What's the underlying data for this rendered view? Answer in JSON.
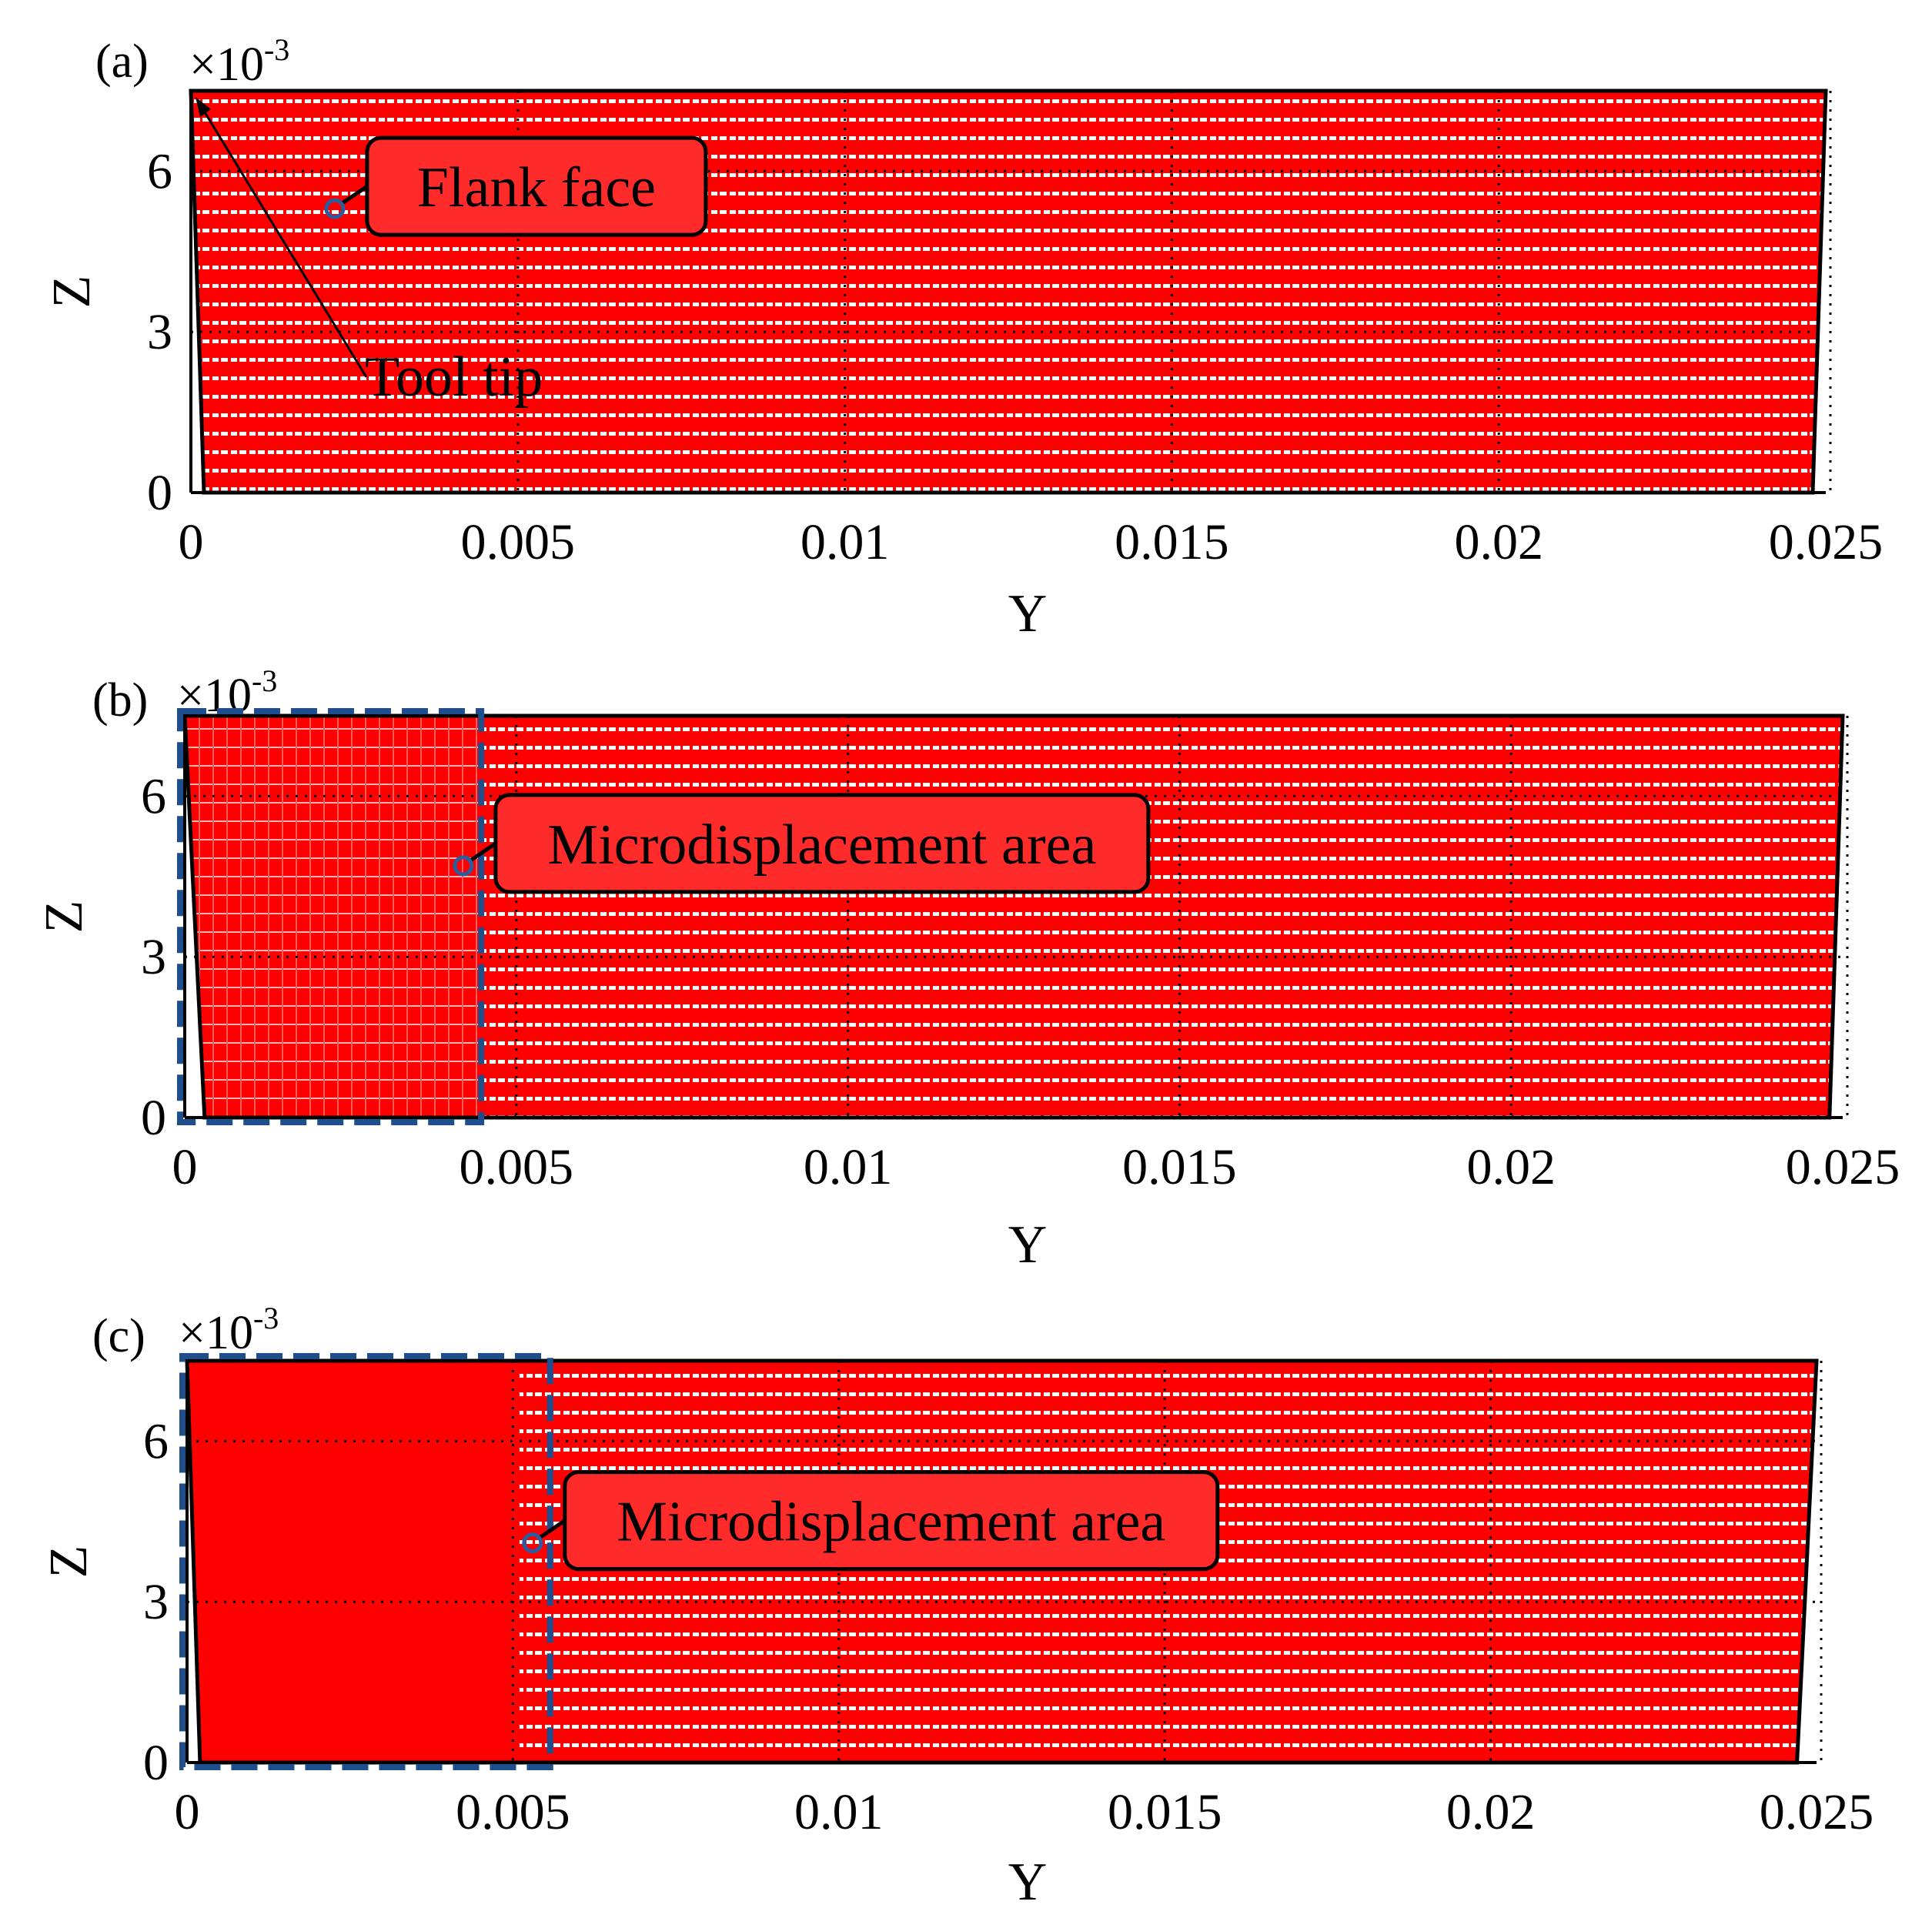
{
  "chart_data": [
    {
      "type": "scatter",
      "panel_label": "(a)",
      "multiplier": "×10",
      "multiplier_exp": "-3",
      "xlabel": "Y",
      "ylabel": "Z",
      "xlim": [
        0,
        0.025
      ],
      "ylim": [
        0,
        0.0075
      ],
      "x_ticks": [
        "0",
        "0.005",
        "0.01",
        "0.015",
        "0.02",
        "0.025"
      ],
      "x_tick_values": [
        0,
        0.005,
        0.01,
        0.015,
        0.02,
        0.025
      ],
      "y_ticks": [
        "0",
        "3",
        "6"
      ],
      "y_tick_values": [
        0,
        0.003,
        0.006
      ],
      "grid": true,
      "outline": [
        [
          0.0002,
          0
        ],
        [
          0.0248,
          0
        ],
        [
          0.025,
          0.0075
        ],
        [
          0,
          0.0075
        ]
      ],
      "point_color": "#ff0000",
      "dense_until": null,
      "highlight_box": null,
      "callout": {
        "text": "Flank face",
        "anchor": [
          0.0022,
          0.0053
        ]
      },
      "arrow_annotation": {
        "text": "Tool tip",
        "target": [
          0,
          0.0075
        ]
      }
    },
    {
      "type": "scatter",
      "panel_label": "(b)",
      "multiplier": "×10",
      "multiplier_exp": "-3",
      "xlabel": "Y",
      "ylabel": "Z",
      "xlim": [
        0,
        0.025
      ],
      "ylim": [
        0,
        0.0075
      ],
      "x_ticks": [
        "0",
        "0.005",
        "0.01",
        "0.015",
        "0.02",
        "0.025"
      ],
      "x_tick_values": [
        0,
        0.005,
        0.01,
        0.015,
        0.02,
        0.025
      ],
      "y_ticks": [
        "0",
        "3",
        "6"
      ],
      "y_tick_values": [
        0,
        0.003,
        0.006
      ],
      "grid": true,
      "outline": [
        [
          0.0003,
          0
        ],
        [
          0.0248,
          0
        ],
        [
          0.025,
          0.0075
        ],
        [
          0,
          0.0075
        ]
      ],
      "point_color": "#ff0000",
      "dense_until": 0.0045,
      "highlight_box": {
        "x": [
          0,
          0.0044
        ],
        "y": [
          0,
          0.0075
        ]
      },
      "callout": {
        "text": "Microdisplacement area",
        "anchor": [
          0.0042,
          0.0047
        ]
      },
      "arrow_annotation": null
    },
    {
      "type": "scatter",
      "panel_label": "(c)",
      "multiplier": "×10",
      "multiplier_exp": "-3",
      "xlabel": "Y",
      "ylabel": "Z",
      "xlim": [
        0,
        0.025
      ],
      "ylim": [
        0,
        0.0075
      ],
      "x_ticks": [
        "0",
        "0.005",
        "0.01",
        "0.015",
        "0.02",
        "0.025"
      ],
      "x_tick_values": [
        0,
        0.005,
        0.01,
        0.015,
        0.02,
        0.025
      ],
      "y_ticks": [
        "0",
        "3",
        "6"
      ],
      "y_tick_values": [
        0,
        0.003,
        0.006
      ],
      "grid": true,
      "outline": [
        [
          0.0002,
          0
        ],
        [
          0.0247,
          0
        ],
        [
          0.025,
          0.0075
        ],
        [
          0,
          0.0075
        ]
      ],
      "point_color": "#ff0000",
      "dense_until": 0.0051,
      "highlight_box": {
        "x": [
          0,
          0.0055
        ],
        "y": [
          0,
          0.0075
        ]
      },
      "callout": {
        "text": "Microdisplacement area",
        "anchor": [
          0.0053,
          0.0041
        ]
      },
      "arrow_annotation": null
    }
  ],
  "colors": {
    "points": "#ff0000",
    "highlight_box": "#1f4e8c",
    "marker": "#2a5d9f"
  }
}
